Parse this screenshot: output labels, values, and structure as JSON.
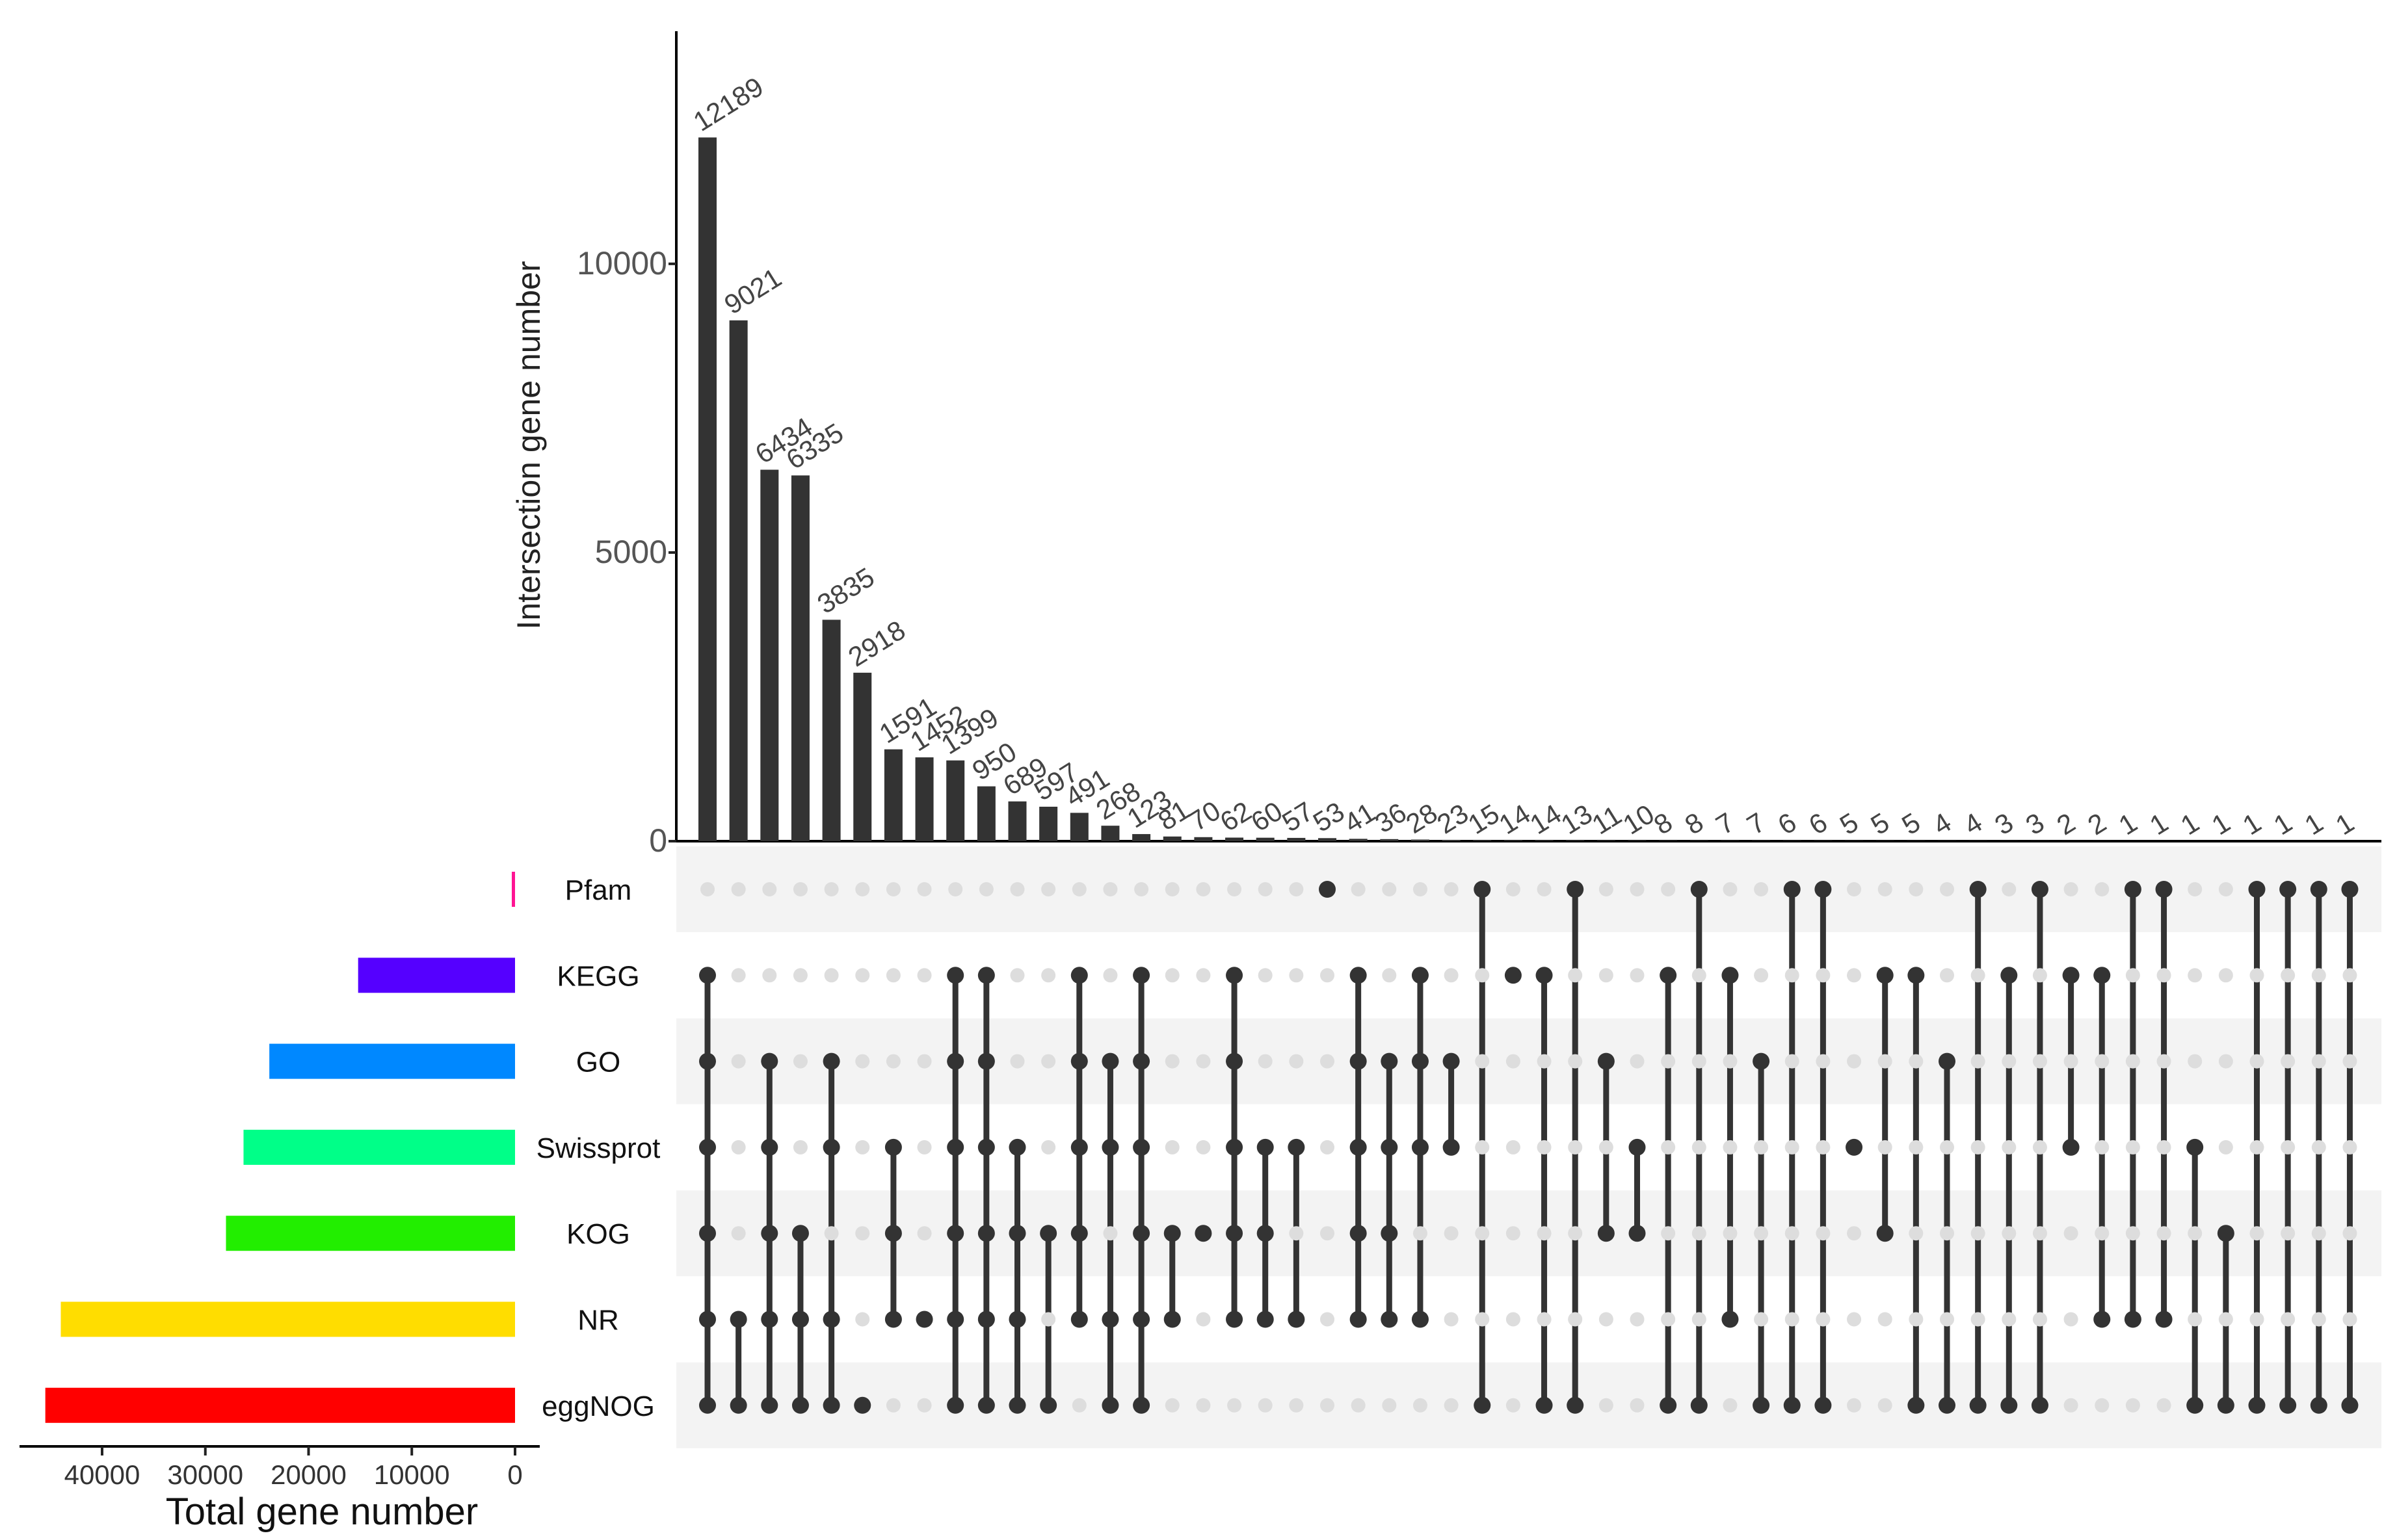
{
  "chart_data": {
    "type": "upset",
    "title": "",
    "ylabel": "Intersection gene number",
    "xlabel": "Total gene number",
    "ylim": [
      0,
      13500
    ],
    "yticks": [
      0,
      5000,
      10000
    ],
    "ytick_labels": [
      "0",
      "5000",
      "10000"
    ],
    "set_axis_ticks": [
      40000,
      30000,
      20000,
      10000,
      0
    ],
    "set_axis_tick_labels": [
      "40000",
      "30000",
      "20000",
      "10000",
      "0"
    ],
    "set_axis_max": 48000,
    "sets": [
      {
        "name": "Pfam",
        "size": 200,
        "color": "#FF1493"
      },
      {
        "name": "KEGG",
        "size": 15200,
        "color": "#5500FF"
      },
      {
        "name": "GO",
        "size": 23800,
        "color": "#0088FF"
      },
      {
        "name": "Swissprot",
        "size": 26300,
        "color": "#00FF88"
      },
      {
        "name": "KOG",
        "size": 28000,
        "color": "#22EE00"
      },
      {
        "name": "NR",
        "size": 44000,
        "color": "#FFDD00"
      },
      {
        "name": "eggNOG",
        "size": 45500,
        "color": "#FF0000"
      }
    ],
    "intersections": [
      {
        "label": "12189",
        "value": 12189,
        "members": [
          "KEGG",
          "GO",
          "Swissprot",
          "KOG",
          "NR",
          "eggNOG"
        ]
      },
      {
        "label": "9021",
        "value": 9021,
        "members": [
          "NR",
          "eggNOG"
        ]
      },
      {
        "label": "6434",
        "value": 6434,
        "members": [
          "GO",
          "Swissprot",
          "KOG",
          "NR",
          "eggNOG"
        ]
      },
      {
        "label": "6335",
        "value": 6335,
        "members": [
          "KOG",
          "NR",
          "eggNOG"
        ]
      },
      {
        "label": "3835",
        "value": 3835,
        "members": [
          "GO",
          "Swissprot",
          "NR",
          "eggNOG"
        ]
      },
      {
        "label": "2918",
        "value": 2918,
        "members": [
          "eggNOG"
        ]
      },
      {
        "label": "1591",
        "value": 1591,
        "members": [
          "Swissprot",
          "KOG",
          "NR"
        ]
      },
      {
        "label": "1452",
        "value": 1452,
        "members": [
          "NR"
        ]
      },
      {
        "label": "1399",
        "value": 1399,
        "members": [
          "KEGG",
          "GO",
          "Swissprot",
          "KOG",
          "NR",
          "eggNOG"
        ]
      },
      {
        "label": "950",
        "value": 950,
        "members": [
          "KEGG",
          "GO",
          "Swissprot",
          "KOG",
          "NR",
          "eggNOG"
        ]
      },
      {
        "label": "689",
        "value": 689,
        "members": [
          "Swissprot",
          "KOG",
          "NR",
          "eggNOG"
        ]
      },
      {
        "label": "597",
        "value": 597,
        "members": [
          "KOG",
          "eggNOG"
        ]
      },
      {
        "label": "491",
        "value": 491,
        "members": [
          "KEGG",
          "GO",
          "Swissprot",
          "KOG",
          "NR"
        ]
      },
      {
        "label": "268",
        "value": 268,
        "members": [
          "GO",
          "Swissprot",
          "NR",
          "eggNOG"
        ]
      },
      {
        "label": "123",
        "value": 123,
        "members": [
          "KEGG",
          "GO",
          "Swissprot",
          "KOG",
          "NR",
          "eggNOG"
        ]
      },
      {
        "label": "81",
        "value": 81,
        "members": [
          "KOG",
          "NR"
        ]
      },
      {
        "label": "70",
        "value": 70,
        "members": [
          "KOG"
        ]
      },
      {
        "label": "62",
        "value": 62,
        "members": [
          "KEGG",
          "GO",
          "Swissprot",
          "KOG",
          "NR"
        ]
      },
      {
        "label": "60",
        "value": 60,
        "members": [
          "Swissprot",
          "KOG",
          "NR"
        ]
      },
      {
        "label": "57",
        "value": 57,
        "members": [
          "Swissprot",
          "NR"
        ]
      },
      {
        "label": "53",
        "value": 53,
        "members": [
          "Pfam"
        ]
      },
      {
        "label": "41",
        "value": 41,
        "members": [
          "KEGG",
          "GO",
          "Swissprot",
          "KOG",
          "NR"
        ]
      },
      {
        "label": "36",
        "value": 36,
        "members": [
          "GO",
          "Swissprot",
          "KOG",
          "NR"
        ]
      },
      {
        "label": "28",
        "value": 28,
        "members": [
          "KEGG",
          "GO",
          "Swissprot",
          "NR"
        ]
      },
      {
        "label": "23",
        "value": 23,
        "members": [
          "GO",
          "Swissprot"
        ]
      },
      {
        "label": "15",
        "value": 15,
        "members": [
          "Pfam",
          "eggNOG"
        ]
      },
      {
        "label": "14",
        "value": 14,
        "members": [
          "KEGG"
        ]
      },
      {
        "label": "14",
        "value": 14,
        "members": [
          "KEGG",
          "eggNOG"
        ]
      },
      {
        "label": "13",
        "value": 13,
        "members": [
          "Pfam",
          "eggNOG"
        ]
      },
      {
        "label": "11",
        "value": 11,
        "members": [
          "GO",
          "KOG"
        ]
      },
      {
        "label": "10",
        "value": 10,
        "members": [
          "Swissprot",
          "KOG"
        ]
      },
      {
        "label": "8",
        "value": 8,
        "members": [
          "KEGG",
          "eggNOG"
        ]
      },
      {
        "label": "8",
        "value": 8,
        "members": [
          "Pfam",
          "eggNOG"
        ]
      },
      {
        "label": "7",
        "value": 7,
        "members": [
          "KEGG",
          "NR"
        ]
      },
      {
        "label": "7",
        "value": 7,
        "members": [
          "GO",
          "eggNOG"
        ]
      },
      {
        "label": "6",
        "value": 6,
        "members": [
          "Pfam",
          "eggNOG"
        ]
      },
      {
        "label": "6",
        "value": 6,
        "members": [
          "Pfam",
          "eggNOG"
        ]
      },
      {
        "label": "5",
        "value": 5,
        "members": [
          "Swissprot"
        ]
      },
      {
        "label": "5",
        "value": 5,
        "members": [
          "KEGG",
          "KOG"
        ]
      },
      {
        "label": "5",
        "value": 5,
        "members": [
          "KEGG",
          "eggNOG"
        ]
      },
      {
        "label": "4",
        "value": 4,
        "members": [
          "GO",
          "eggNOG"
        ]
      },
      {
        "label": "4",
        "value": 4,
        "members": [
          "Pfam",
          "eggNOG"
        ]
      },
      {
        "label": "3",
        "value": 3,
        "members": [
          "KEGG",
          "eggNOG"
        ]
      },
      {
        "label": "3",
        "value": 3,
        "members": [
          "Pfam",
          "eggNOG"
        ]
      },
      {
        "label": "2",
        "value": 2,
        "members": [
          "KEGG",
          "Swissprot"
        ]
      },
      {
        "label": "2",
        "value": 2,
        "members": [
          "KEGG",
          "NR"
        ]
      },
      {
        "label": "1",
        "value": 1,
        "members": [
          "Pfam",
          "NR"
        ]
      },
      {
        "label": "1",
        "value": 1,
        "members": [
          "Pfam",
          "NR"
        ]
      },
      {
        "label": "1",
        "value": 1,
        "members": [
          "Swissprot",
          "eggNOG"
        ]
      },
      {
        "label": "1",
        "value": 1,
        "members": [
          "KOG",
          "eggNOG"
        ]
      },
      {
        "label": "1",
        "value": 1,
        "members": [
          "Pfam",
          "eggNOG"
        ]
      },
      {
        "label": "1",
        "value": 1,
        "members": [
          "Pfam",
          "eggNOG"
        ]
      },
      {
        "label": "1",
        "value": 1,
        "members": [
          "Pfam",
          "eggNOG"
        ]
      },
      {
        "label": "1",
        "value": 1,
        "members": [
          "Pfam",
          "eggNOG"
        ]
      }
    ]
  }
}
